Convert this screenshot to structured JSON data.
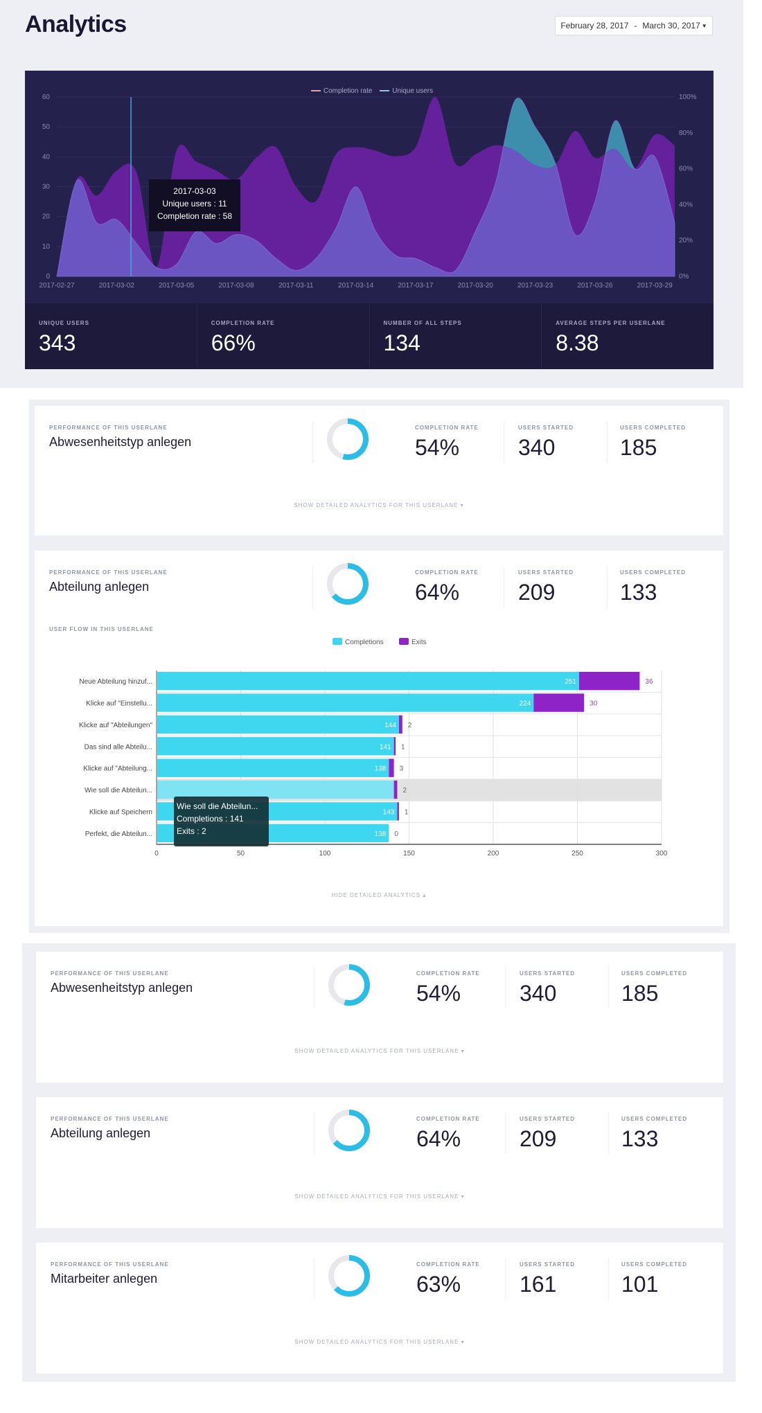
{
  "header": {
    "title": "Analytics",
    "date_start": "February 28, 2017",
    "date_sep": "-",
    "date_end": "March 30, 2017",
    "dropdown_icon": "caret-down"
  },
  "overview": {
    "legend": [
      {
        "name": "Completion rate",
        "color": "#e7a0b4"
      },
      {
        "name": "Unique users",
        "color": "#8fc7f0"
      }
    ],
    "tooltip": {
      "date": "2017-03-03",
      "line1": "Unique users : 11",
      "line2": "Completion rate : 58"
    },
    "stats": [
      {
        "label": "UNIQUE USERS",
        "value": "343"
      },
      {
        "label": "COMPLETION RATE",
        "value": "66%"
      },
      {
        "label": "NUMBER OF ALL STEPS",
        "value": "134"
      },
      {
        "label": "AVERAGE STEPS PER USERLANE",
        "value": "8.38"
      }
    ]
  },
  "chart_data": [
    {
      "type": "area",
      "x": [
        "2017-02-27",
        "2017-02-28",
        "2017-03-01",
        "2017-03-02",
        "2017-03-03",
        "2017-03-04",
        "2017-03-05",
        "2017-03-06",
        "2017-03-07",
        "2017-03-08",
        "2017-03-09",
        "2017-03-10",
        "2017-03-11",
        "2017-03-12",
        "2017-03-13",
        "2017-03-14",
        "2017-03-15",
        "2017-03-16",
        "2017-03-17",
        "2017-03-18",
        "2017-03-19",
        "2017-03-20",
        "2017-03-21",
        "2017-03-22",
        "2017-03-23",
        "2017-03-24",
        "2017-03-25",
        "2017-03-26",
        "2017-03-27",
        "2017-03-28",
        "2017-03-29",
        "2017-03-30"
      ],
      "x_ticks": [
        "2017-02-27",
        "2017-03-02",
        "2017-03-05",
        "2017-03-08",
        "2017-03-11",
        "2017-03-14",
        "2017-03-17",
        "2017-03-20",
        "2017-03-23",
        "2017-03-26",
        "2017-03-29"
      ],
      "series": [
        {
          "name": "Completion rate",
          "axis": "right",
          "color": "#65209c",
          "values": [
            0,
            54,
            45,
            59,
            58,
            5,
            70,
            64,
            59,
            54,
            66,
            72,
            50,
            42,
            68,
            72,
            70,
            67,
            72,
            100,
            63,
            68,
            73,
            70,
            62,
            62,
            81,
            66,
            71,
            60,
            79,
            73
          ]
        },
        {
          "name": "Unique users",
          "axis": "left",
          "color": "#6a55c2",
          "overlap_color": "#3d8eac",
          "values": [
            0,
            32,
            18,
            19,
            11,
            3,
            4,
            15,
            11,
            14,
            12,
            6,
            2,
            6,
            16,
            30,
            15,
            7,
            6,
            3,
            2,
            15,
            31,
            59,
            50,
            38,
            14,
            25,
            52,
            36,
            40,
            18
          ]
        }
      ],
      "y_left": {
        "range": [
          0,
          60
        ],
        "ticks": [
          "0",
          "10",
          "20",
          "30",
          "40",
          "50",
          "60"
        ]
      },
      "y_right": {
        "range": [
          0,
          100
        ],
        "ticks": [
          "0%",
          "20%",
          "40%",
          "60%",
          "80%",
          "100%"
        ]
      },
      "grid": true,
      "legend_position": "top-center"
    },
    {
      "type": "bar",
      "orientation": "horizontal",
      "stacked": true,
      "categories": [
        "Neue Abteilung hinzuf...",
        "Klicke auf \"Einstellu...",
        "Klicke auf \"Abteilungen\"",
        "Das sind alle Abteilu...",
        "Klicke auf \"Abteilung...",
        "Wie soll die Abteilun...",
        "Klicke auf Speichern",
        "Perfekt, die Abteilun..."
      ],
      "series": [
        {
          "name": "Completions",
          "color": "#3fd6ef",
          "values": [
            251,
            224,
            144,
            141,
            138,
            141,
            143,
            138
          ]
        },
        {
          "name": "Exits",
          "color": "#8e24c7",
          "values": [
            36,
            30,
            2,
            1,
            3,
            2,
            1,
            0
          ]
        }
      ],
      "xlim": [
        0,
        300
      ],
      "x_ticks": [
        "0",
        "50",
        "100",
        "150",
        "200",
        "250",
        "300"
      ],
      "highlighted_category": "Wie soll die Abteilun...",
      "legend_position": "top-center",
      "grid": true
    }
  ],
  "section1": {
    "cards": [
      {
        "perf_label": "PERFORMANCE OF THIS USERLANE",
        "title": "Abwesenheitstyp anlegen",
        "rate_label": "COMPLETION RATE",
        "rate": "54%",
        "rate_value": 54,
        "started_label": "USERS STARTED",
        "started": "340",
        "completed_label": "USERS COMPLETED",
        "completed": "185",
        "toggle": "SHOW DETAILED ANALYTICS FOR THIS USERLANE ▾"
      },
      {
        "perf_label": "PERFORMANCE OF THIS USERLANE",
        "title": "Abteilung anlegen",
        "rate_label": "COMPLETION RATE",
        "rate": "64%",
        "rate_value": 64,
        "started_label": "USERS STARTED",
        "started": "209",
        "completed_label": "USERS COMPLETED",
        "completed": "133",
        "flow_label": "USER FLOW IN THIS USERLANE",
        "tooltip": {
          "title": "Wie soll die Abteilun...",
          "line1": "Completions : 141",
          "line2": "Exits : 2"
        },
        "toggle": "HIDE DETAILED ANALYTICS ▴"
      }
    ]
  },
  "section2": {
    "cards": [
      {
        "perf_label": "PERFORMANCE OF THIS USERLANE",
        "title": "Abwesenheitstyp anlegen",
        "rate_label": "COMPLETION RATE",
        "rate": "54%",
        "rate_value": 54,
        "started_label": "USERS STARTED",
        "started": "340",
        "completed_label": "USERS COMPLETED",
        "completed": "185",
        "toggle": "SHOW DETAILED ANALYTICS FOR THIS USERLANE ▾"
      },
      {
        "perf_label": "PERFORMANCE OF THIS USERLANE",
        "title": "Abteilung anlegen",
        "rate_label": "COMPLETION RATE",
        "rate": "64%",
        "rate_value": 64,
        "started_label": "USERS STARTED",
        "started": "209",
        "completed_label": "USERS COMPLETED",
        "completed": "133",
        "toggle": "SHOW DETAILED ANALYTICS FOR THIS USERLANE ▾"
      },
      {
        "perf_label": "PERFORMANCE OF THIS USERLANE",
        "title": "Mitarbeiter anlegen",
        "rate_label": "COMPLETION RATE",
        "rate": "63%",
        "rate_value": 63,
        "started_label": "USERS STARTED",
        "started": "161",
        "completed_label": "USERS COMPLETED",
        "completed": "101",
        "toggle": "SHOW DETAILED ANALYTICS FOR THIS USERLANE ▾"
      }
    ]
  },
  "colors": {
    "accent": "#2bbde6",
    "donut_track": "#e8e8ec",
    "chart_bg": "#25214d"
  }
}
